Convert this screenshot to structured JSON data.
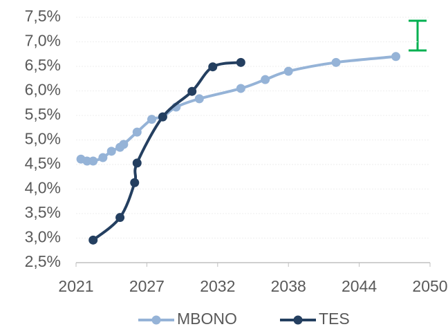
{
  "chart_data": {
    "type": "line",
    "xlim": [
      2021,
      2050
    ],
    "xticks": [
      2021,
      {
        "value": 2026.8,
        "label": "2027"
      },
      {
        "value": 2032.6,
        "label": "2032"
      },
      {
        "value": 2038.4,
        "label": "2038"
      },
      {
        "value": 2044.2,
        "label": "2044"
      },
      2050
    ],
    "ylim": [
      2.5,
      7.5
    ],
    "yticks": [
      {
        "value": 2.5,
        "label": "2,5%"
      },
      {
        "value": 3.0,
        "label": "3,0%"
      },
      {
        "value": 3.5,
        "label": "3,5%"
      },
      {
        "value": 4.0,
        "label": "4,0%"
      },
      {
        "value": 4.5,
        "label": "4,5%"
      },
      {
        "value": 5.0,
        "label": "5,0%"
      },
      {
        "value": 5.5,
        "label": "5,5%"
      },
      {
        "value": 6.0,
        "label": "6,0%"
      },
      {
        "value": 6.5,
        "label": "6,5%"
      },
      {
        "value": 7.0,
        "label": "7,0%"
      },
      {
        "value": 7.5,
        "label": "7,5%"
      }
    ],
    "grid": true,
    "legend": "bottom",
    "series": [
      {
        "name": "MBONO",
        "color": "#95b3d7",
        "x": [
          2021.4,
          2021.9,
          2022.4,
          2023.2,
          2023.9,
          2024.6,
          2024.9,
          2026.0,
          2027.2,
          2028.1,
          2029.2,
          2031.1,
          2034.5,
          2036.5,
          2038.4,
          2042.3,
          2047.2
        ],
        "values": [
          4.61,
          4.57,
          4.57,
          4.64,
          4.77,
          4.85,
          4.91,
          5.16,
          5.42,
          5.47,
          5.67,
          5.84,
          6.05,
          6.23,
          6.4,
          6.58,
          6.7
        ]
      },
      {
        "name": "TES",
        "color": "#243f60",
        "x": [
          2022.4,
          2024.6,
          2025.8,
          2026.0,
          2028.1,
          2030.5,
          2032.2,
          2034.5
        ],
        "values": [
          2.96,
          3.42,
          4.13,
          4.53,
          5.47,
          5.99,
          6.49,
          6.58
        ]
      }
    ]
  }
}
